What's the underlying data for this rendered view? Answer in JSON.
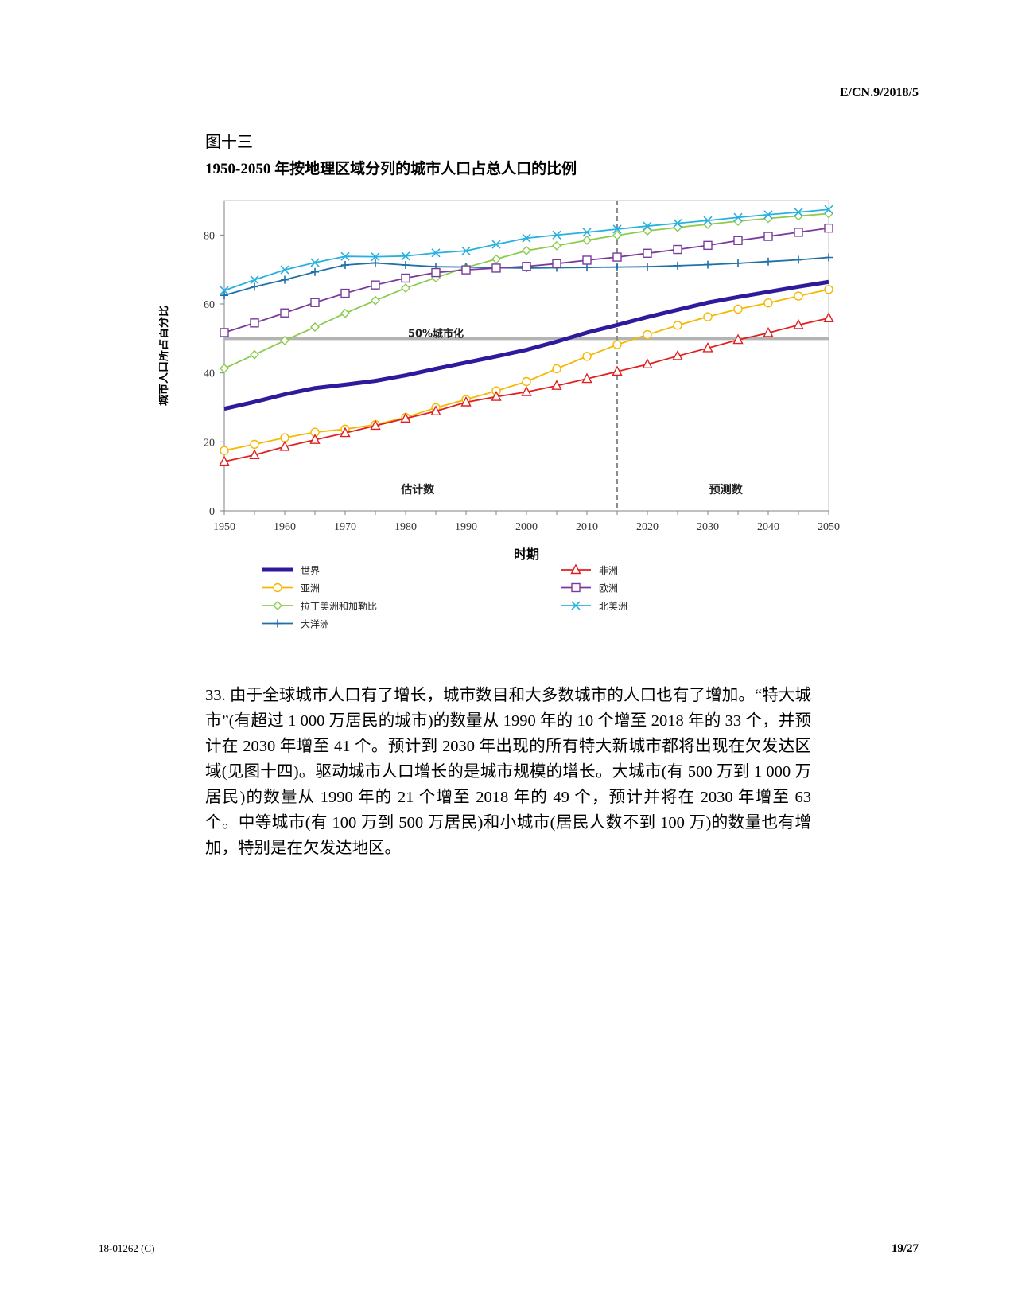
{
  "header": {
    "doc_symbol": "E/CN.9/2018/5"
  },
  "figure": {
    "label": "图十三",
    "title": "1950-2050 年按地理区域分列的城市人口占总人口的比例"
  },
  "chart_data": {
    "type": "line",
    "ylabel": "城市人口所占百分比",
    "xlabel": "时期",
    "ylim": [
      0,
      90
    ],
    "yticks": [
      0,
      20,
      40,
      60,
      80
    ],
    "xticks": [
      1950,
      1960,
      1970,
      1980,
      1990,
      2000,
      2010,
      2020,
      2030,
      2040,
      2050
    ],
    "x": [
      1950,
      1955,
      1960,
      1965,
      1970,
      1975,
      1980,
      1985,
      1990,
      1995,
      2000,
      2005,
      2010,
      2015,
      2020,
      2025,
      2030,
      2035,
      2040,
      2045,
      2050
    ],
    "reference_line": {
      "value": 50,
      "label": "50%城市化"
    },
    "divider_year": 2015,
    "region_labels": {
      "estimates": "估计数",
      "projections": "预测数"
    },
    "series": [
      {
        "name": "世界",
        "color": "#2e1a9c",
        "marker": "none",
        "values": [
          29.6,
          31.6,
          33.8,
          35.6,
          36.6,
          37.7,
          39.3,
          41.2,
          43.0,
          44.8,
          46.7,
          49.1,
          51.7,
          53.9,
          56.2,
          58.3,
          60.4,
          62.0,
          63.5,
          65.0,
          66.4
        ]
      },
      {
        "name": "亚洲",
        "color": "#f5b800",
        "marker": "circle",
        "values": [
          17.5,
          19.3,
          21.2,
          22.8,
          23.7,
          25.0,
          27.1,
          29.9,
          32.3,
          34.8,
          37.5,
          41.2,
          44.8,
          48.2,
          51.1,
          53.8,
          56.3,
          58.5,
          60.3,
          62.3,
          64.2
        ]
      },
      {
        "name": "拉丁美洲和加勒比",
        "color": "#8ccb4e",
        "marker": "diamond",
        "values": [
          41.3,
          45.3,
          49.4,
          53.3,
          57.3,
          61.0,
          64.6,
          67.6,
          70.6,
          73.0,
          75.5,
          76.9,
          78.5,
          79.9,
          81.2,
          82.2,
          83.1,
          84.0,
          84.8,
          85.5,
          86.2
        ]
      },
      {
        "name": "大洋洲",
        "color": "#1f6fa8",
        "marker": "plus",
        "values": [
          62.5,
          65.0,
          67.0,
          69.3,
          71.3,
          71.9,
          71.3,
          70.8,
          70.7,
          70.5,
          70.4,
          70.5,
          70.6,
          70.7,
          70.8,
          71.1,
          71.4,
          71.8,
          72.3,
          72.8,
          73.5
        ]
      },
      {
        "name": "非洲",
        "color": "#e02020",
        "marker": "triangle",
        "values": [
          14.3,
          16.2,
          18.6,
          20.6,
          22.6,
          24.7,
          26.8,
          28.9,
          31.5,
          33.1,
          34.5,
          36.3,
          38.3,
          40.4,
          42.5,
          44.9,
          47.2,
          49.6,
          51.6,
          53.9,
          55.9
        ]
      },
      {
        "name": "欧洲",
        "color": "#7a3a9c",
        "marker": "square",
        "values": [
          51.7,
          54.5,
          57.4,
          60.4,
          63.1,
          65.5,
          67.5,
          69.1,
          69.9,
          70.4,
          70.9,
          71.7,
          72.7,
          73.6,
          74.7,
          75.8,
          77.0,
          78.4,
          79.6,
          80.8,
          82.0
        ]
      },
      {
        "name": "北美洲",
        "color": "#27b0e0",
        "marker": "x",
        "values": [
          63.9,
          67.0,
          69.9,
          72.0,
          73.8,
          73.7,
          73.9,
          74.8,
          75.4,
          77.3,
          79.1,
          80.0,
          80.8,
          81.7,
          82.6,
          83.4,
          84.2,
          85.1,
          85.9,
          86.6,
          87.4
        ]
      }
    ],
    "legend_order": [
      0,
      4,
      1,
      5,
      2,
      6,
      3
    ]
  },
  "body": {
    "paragraph_33": "33.  由于全球城市人口有了增长，城市数目和大多数城市的人口也有了增加。“特大城市”(有超过 1 000 万居民的城市)的数量从 1990 年的 10 个增至 2018 年的 33 个，并预计在 2030 年增至 41 个。预计到 2030 年出现的所有特大新城市都将出现在欠发达区域(见图十四)。驱动城市人口增长的是城市规模的增长。大城市(有 500 万到 1 000 万居民)的数量从 1990 年的 21 个增至 2018 年的 49 个，预计并将在 2030 年增至 63 个。中等城市(有 100 万到 500 万居民)和小城市(居民人数不到 100 万)的数量也有增加，特别是在欠发达地区。"
  },
  "footer": {
    "doc_number": "18-01262 (C)",
    "page": "19/27"
  }
}
